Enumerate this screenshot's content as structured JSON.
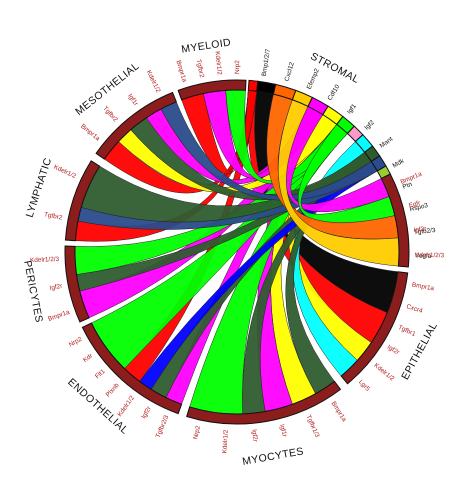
{
  "figure": {
    "background": "#ffffff",
    "arc_border": "#111111",
    "ring_fill": "#8c1d1d",
    "gene_label_color": "#b01c1c",
    "stromal_label_color": "#111111"
  },
  "groups": [
    {
      "id": "myeloid",
      "label": "MYELOID",
      "start": 340.0,
      "end": 3.0,
      "genes": [
        "Bmpr1a",
        "Tgfbr2",
        "Kdelr1/2",
        "Nrp2"
      ]
    },
    {
      "id": "stromal",
      "label": "STROMAL",
      "start": 5.0,
      "end": 95.0,
      "dark_labels": true,
      "genes": [
        "Bmp1/2/7",
        "Cxcl12",
        "Efemp2",
        "Cdf10",
        "Igf1",
        "Igf2",
        "Mant",
        "Mdk",
        "Ptn",
        "Rspo3",
        "Tgfb2/3",
        "Vegfa"
      ]
    },
    {
      "id": "stromal_receptors",
      "label": "",
      "start": 63.0,
      "end": 95.0,
      "genes": [
        "Bmpr1a",
        "Egfr",
        "Igf2r",
        "Kdelr1/2/3"
      ]
    },
    {
      "id": "epithelial",
      "label": "EPITHELIAL",
      "start": 97.0,
      "end": 140.0,
      "genes": [
        "Bmpr1a",
        "Cxcr4",
        "Tgfbr1",
        "Igf2r",
        "Kdelr1/2",
        "Lgr5"
      ]
    },
    {
      "id": "myocytes",
      "label": "MYOCYTES",
      "start": 143.0,
      "end": 197.0,
      "genes": [
        "Bmpr1a",
        "Tgfbr1/3",
        "Igf1r",
        "Igf2r",
        "Kdelr1/2",
        "Nrp2"
      ]
    },
    {
      "id": "endothelial",
      "label": "ENDOTHELIAL",
      "start": 200.0,
      "end": 244.0,
      "genes": [
        "Tgfbr2/3",
        "Igf2r",
        "Kdelr1/2",
        "Plxnb",
        "Flt1",
        "Kdr",
        "Nrp2"
      ]
    },
    {
      "id": "pericytes",
      "label": "PERICYTES",
      "start": 246.0,
      "end": 272.0,
      "genes": [
        "Bmpr1a",
        "Igf2r",
        "Kdelr1/2/3"
      ]
    },
    {
      "id": "lymphatic",
      "label": "LYMPHATIC",
      "start": 274.0,
      "end": 302.0,
      "genes": [
        "Tgfbr2",
        "Kdelr1/2"
      ]
    },
    {
      "id": "mesothelial",
      "label": "MESOTHELIAL",
      "start": 305.0,
      "end": 338.0,
      "genes": [
        "Bmpr1a",
        "Tgfbr2",
        "Igf1r",
        "Kdelr1/2"
      ]
    }
  ],
  "ligands": [
    {
      "name": "Bmp1/2/7",
      "color": "#ff0000",
      "start": 4.0,
      "end": 7.0
    },
    {
      "name": "Cxcl12",
      "color": "#000000",
      "start": 7.0,
      "end": 13.0
    },
    {
      "name": "Efemp2",
      "color": "#ff6600",
      "start": 13.0,
      "end": 20.0
    },
    {
      "name": "Cdf10",
      "color": "#ffcc00",
      "start": 20.0,
      "end": 26.0
    },
    {
      "name": "Igf1",
      "color": "#ff00ff",
      "start": 26.0,
      "end": 32.0
    },
    {
      "name": "Igf2",
      "color": "#ffff00",
      "start": 32.0,
      "end": 38.0
    },
    {
      "name": "Mant",
      "color": "#00ff00",
      "start": 38.0,
      "end": 43.0
    },
    {
      "name": "Mdk",
      "color": "#ff99cc",
      "start": 43.0,
      "end": 47.0
    },
    {
      "name": "Ptn",
      "color": "#00ffff",
      "start": 47.0,
      "end": 52.0
    },
    {
      "name": "Rspo3",
      "color": "#2f5c2f",
      "start": 52.0,
      "end": 56.0
    },
    {
      "name": "Tgfb2/3",
      "color": "#2a4b8c",
      "start": 56.0,
      "end": 60.0
    },
    {
      "name": "Vegfa",
      "color": "#9acd32",
      "start": 60.0,
      "end": 63.0
    }
  ],
  "ribbons": [
    {
      "color": "#000000",
      "a": [
        7,
        13
      ],
      "b": [
        97,
        112
      ]
    },
    {
      "color": "#ff0000",
      "a": [
        4,
        7
      ],
      "b": [
        112,
        124
      ]
    },
    {
      "color": "#ffff00",
      "a": [
        32,
        38
      ],
      "b": [
        124,
        132
      ]
    },
    {
      "color": "#00ffff",
      "a": [
        47,
        52
      ],
      "b": [
        132,
        140
      ]
    },
    {
      "color": "#2f5c2f",
      "a": [
        52,
        56
      ],
      "b": [
        143,
        151
      ]
    },
    {
      "color": "#ffff00",
      "a": [
        32,
        38
      ],
      "b": [
        151,
        160
      ]
    },
    {
      "color": "#ff00ff",
      "a": [
        26,
        32
      ],
      "b": [
        160,
        170
      ]
    },
    {
      "color": "#2f5c2f",
      "a": [
        52,
        56
      ],
      "b": [
        170,
        178
      ]
    },
    {
      "color": "#00ff00",
      "a": [
        38,
        43
      ],
      "b": [
        178,
        197
      ]
    },
    {
      "color": "#ff00ff",
      "a": [
        26,
        32
      ],
      "b": [
        200,
        206
      ]
    },
    {
      "color": "#2f5c2f",
      "a": [
        52,
        56
      ],
      "b": [
        206,
        212
      ]
    },
    {
      "color": "#0000ff",
      "a": [
        56,
        60
      ],
      "b": [
        212,
        217
      ]
    },
    {
      "color": "#ff0000",
      "a": [
        4,
        7
      ],
      "b": [
        217,
        224
      ]
    },
    {
      "color": "#00ff00",
      "a": [
        38,
        43
      ],
      "b": [
        224,
        244
      ]
    },
    {
      "color": "#ff00ff",
      "a": [
        26,
        32
      ],
      "b": [
        246,
        256
      ]
    },
    {
      "color": "#2f5c2f",
      "a": [
        52,
        56
      ],
      "b": [
        256,
        262
      ]
    },
    {
      "color": "#00ff00",
      "a": [
        38,
        43
      ],
      "b": [
        262,
        272
      ]
    },
    {
      "color": "#ff0000",
      "a": [
        4,
        7
      ],
      "b": [
        274,
        281
      ]
    },
    {
      "color": "#2a4b8c",
      "a": [
        56,
        60
      ],
      "b": [
        281,
        286
      ]
    },
    {
      "color": "#2f5c2f",
      "a": [
        52,
        56
      ],
      "b": [
        286,
        302
      ]
    },
    {
      "color": "#ff0000",
      "a": [
        4,
        7
      ],
      "b": [
        305,
        313
      ]
    },
    {
      "color": "#ffff00",
      "a": [
        32,
        38
      ],
      "b": [
        313,
        319
      ]
    },
    {
      "color": "#2f5c2f",
      "a": [
        52,
        56
      ],
      "b": [
        319,
        326
      ]
    },
    {
      "color": "#ff00ff",
      "a": [
        26,
        32
      ],
      "b": [
        326,
        332
      ]
    },
    {
      "color": "#2a4b8c",
      "a": [
        56,
        60
      ],
      "b": [
        332,
        338
      ]
    },
    {
      "color": "#ff0000",
      "a": [
        4,
        7
      ],
      "b": [
        340,
        348
      ]
    },
    {
      "color": "#ff00ff",
      "a": [
        26,
        32
      ],
      "b": [
        348,
        356
      ]
    },
    {
      "color": "#00ff00",
      "a": [
        38,
        43
      ],
      "b": [
        356,
        3
      ]
    },
    {
      "color": "#ff00ff",
      "a": [
        26,
        32
      ],
      "b": [
        63,
        70
      ]
    },
    {
      "color": "#00ff00",
      "a": [
        38,
        43
      ],
      "b": [
        70,
        77
      ]
    },
    {
      "color": "#ff6600",
      "a": [
        13,
        20
      ],
      "b": [
        77,
        85
      ]
    },
    {
      "color": "#ffcc00",
      "a": [
        20,
        26
      ],
      "b": [
        85,
        95
      ]
    }
  ]
}
